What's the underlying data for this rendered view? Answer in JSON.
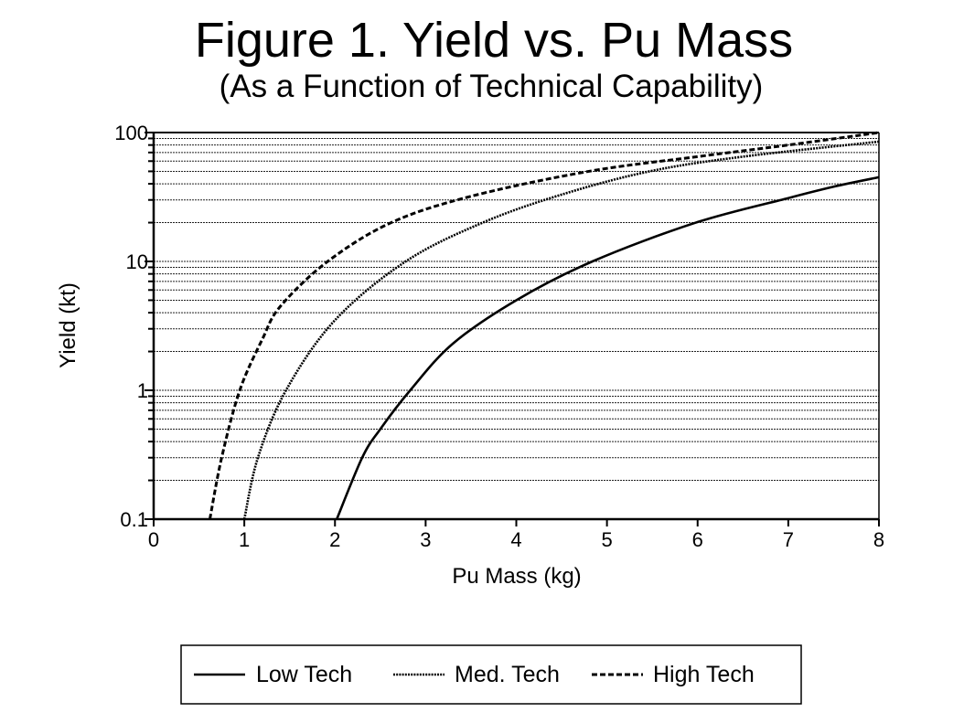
{
  "chart_data": {
    "type": "line",
    "title": "Figure 1.  Yield vs. Pu Mass",
    "subtitle": "(As a Function of Technical Capability)",
    "xlabel": "Pu Mass (kg)",
    "ylabel": "Yield (kt)",
    "xlim": [
      0,
      8
    ],
    "ylim": [
      0.1,
      100
    ],
    "yscale": "log",
    "xticks": [
      "0",
      "1",
      "2",
      "3",
      "4",
      "5",
      "6",
      "7",
      "8"
    ],
    "yticks": [
      "0.1",
      "1",
      "10",
      "100"
    ],
    "grid": "horizontal minor log gridlines",
    "legend_position": "bottom",
    "series": [
      {
        "name": "Low Tech",
        "style": "solid",
        "x": [
          2.02,
          2.3,
          2.5,
          2.83,
          3.3,
          4.0,
          4.84,
          5.98,
          7.0,
          7.5,
          8.0
        ],
        "y": [
          0.1,
          0.3,
          0.5,
          1.0,
          2.3,
          5.0,
          10,
          20,
          31,
          38,
          45
        ]
      },
      {
        "name": "Med. Tech",
        "style": "dotted",
        "x": [
          1.0,
          1.15,
          1.46,
          2.0,
          2.78,
          3.63,
          4.5,
          5.47,
          6.5,
          8.0
        ],
        "y": [
          0.1,
          0.3,
          1.0,
          3.5,
          10,
          20,
          33,
          50,
          65,
          85
        ]
      },
      {
        "name": "High Tech",
        "style": "dashed",
        "x": [
          0.62,
          0.75,
          0.95,
          1.2,
          1.4,
          1.92,
          2.62,
          3.5,
          4.8,
          6.0,
          7.0,
          8.0
        ],
        "y": [
          0.1,
          0.3,
          1.0,
          2.5,
          4.5,
          10,
          20,
          32,
          50,
          65,
          80,
          100
        ]
      }
    ]
  }
}
